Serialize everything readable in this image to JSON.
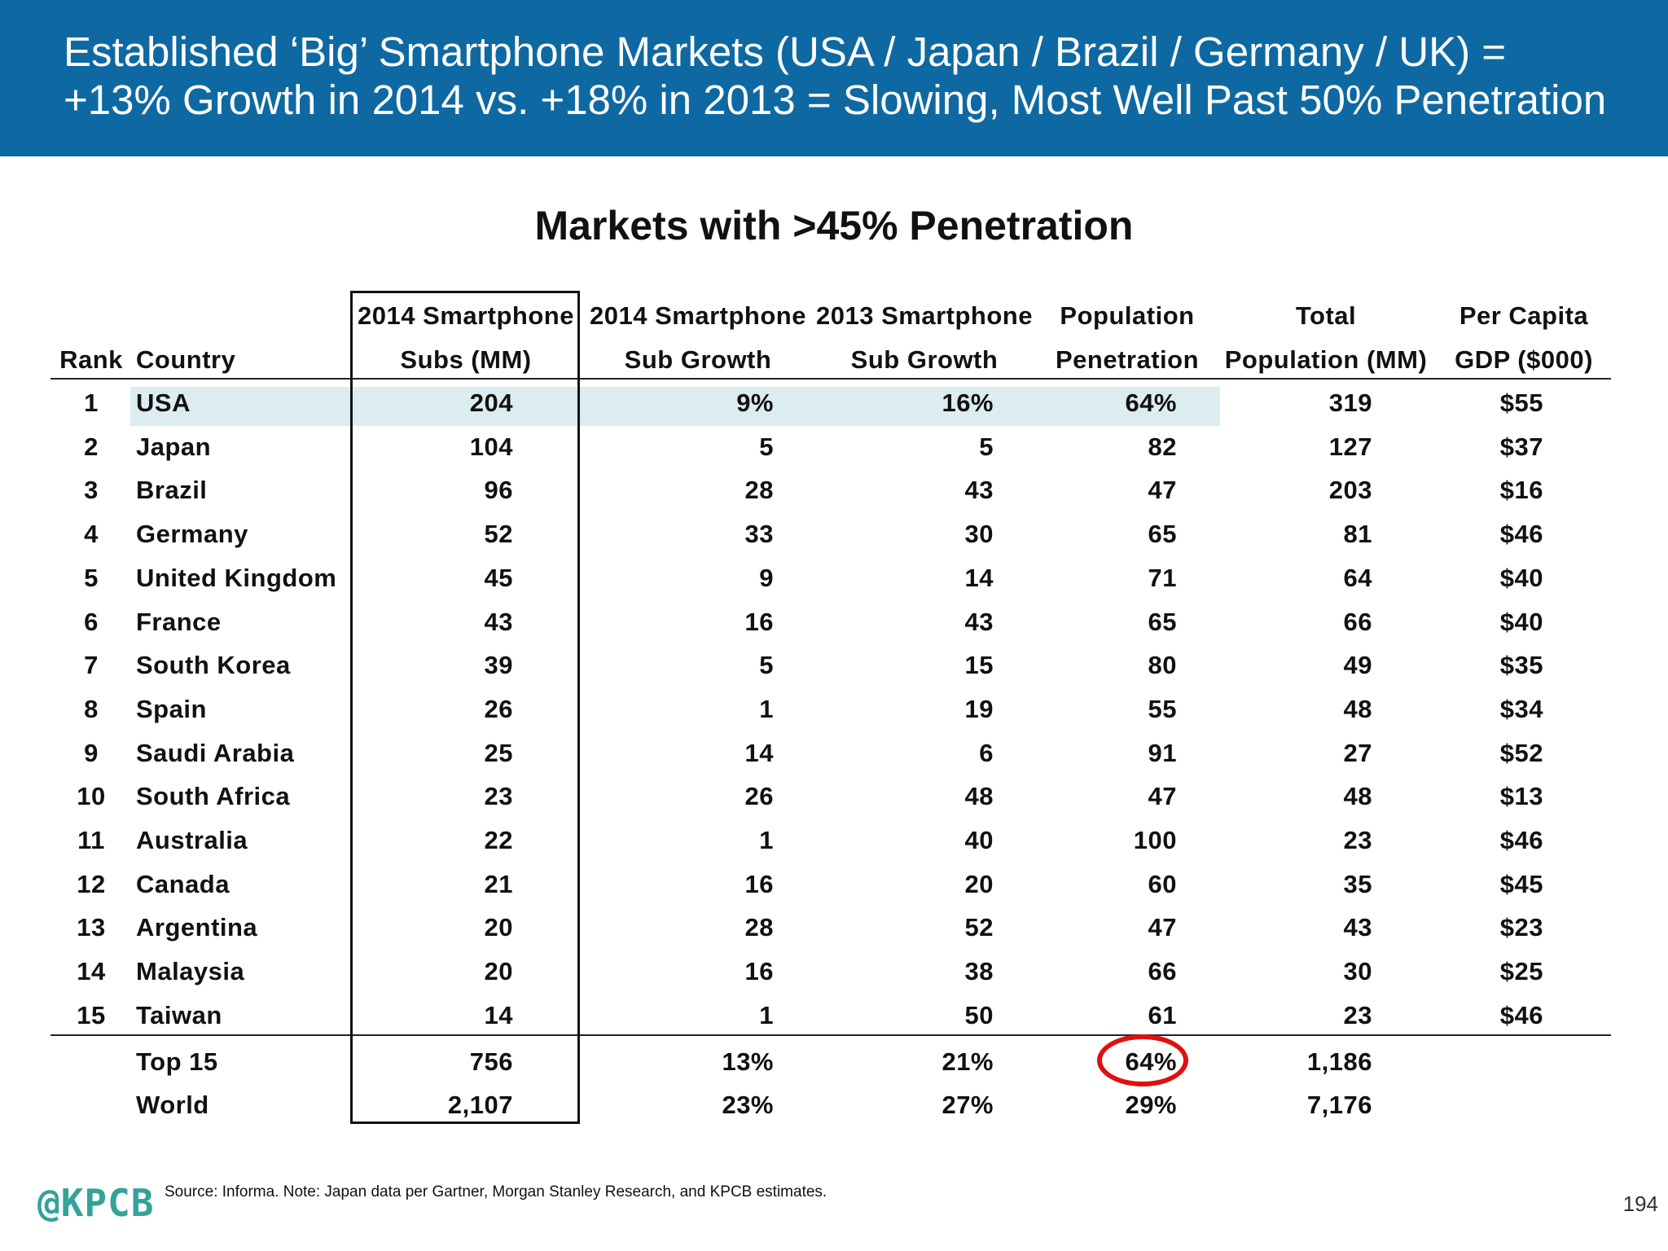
{
  "header": {
    "title_line1": "Established ‘Big’ Smartphone Markets (USA / Japan / Brazil / Germany / UK) =",
    "title_line2": "+13% Growth in 2014 vs. +18% in 2013 = Slowing, Most Well Past 50% Penetration"
  },
  "subtitle": "Markets with >45% Penetration",
  "columns": [
    {
      "line1": "",
      "line2": "Rank"
    },
    {
      "line1": "",
      "line2": "Country"
    },
    {
      "line1": "2014 Smartphone",
      "line2": "Subs (MM)"
    },
    {
      "line1": "2014 Smartphone",
      "line2": "Sub Growth"
    },
    {
      "line1": "2013 Smartphone",
      "line2": "Sub Growth"
    },
    {
      "line1": "Population",
      "line2": "Penetration"
    },
    {
      "line1": "Total",
      "line2": "Population (MM)"
    },
    {
      "line1": "Per Capita",
      "line2": "GDP ($000)"
    }
  ],
  "rows": [
    [
      "1",
      "USA",
      "204",
      "9%",
      "16%",
      "64%",
      "319",
      "$55"
    ],
    [
      "2",
      "Japan",
      "104",
      "5",
      "5",
      "82",
      "127",
      "$37"
    ],
    [
      "3",
      "Brazil",
      "96",
      "28",
      "43",
      "47",
      "203",
      "$16"
    ],
    [
      "4",
      "Germany",
      "52",
      "33",
      "30",
      "65",
      "81",
      "$46"
    ],
    [
      "5",
      "United Kingdom",
      "45",
      "9",
      "14",
      "71",
      "64",
      "$40"
    ],
    [
      "6",
      "France",
      "43",
      "16",
      "43",
      "65",
      "66",
      "$40"
    ],
    [
      "7",
      "South Korea",
      "39",
      "5",
      "15",
      "80",
      "49",
      "$35"
    ],
    [
      "8",
      "Spain",
      "26",
      "1",
      "19",
      "55",
      "48",
      "$34"
    ],
    [
      "9",
      "Saudi Arabia",
      "25",
      "14",
      "6",
      "91",
      "27",
      "$52"
    ],
    [
      "10",
      "South Africa",
      "23",
      "26",
      "48",
      "47",
      "48",
      "$13"
    ],
    [
      "11",
      "Australia",
      "22",
      "1",
      "40",
      "100",
      "23",
      "$46"
    ],
    [
      "12",
      "Canada",
      "21",
      "16",
      "20",
      "60",
      "35",
      "$45"
    ],
    [
      "13",
      "Argentina",
      "20",
      "28",
      "52",
      "47",
      "43",
      "$23"
    ],
    [
      "14",
      "Malaysia",
      "20",
      "16",
      "38",
      "66",
      "30",
      "$25"
    ],
    [
      "15",
      "Taiwan",
      "14",
      "1",
      "50",
      "61",
      "23",
      "$46"
    ]
  ],
  "totals": [
    [
      "",
      "Top 15",
      "756",
      "13%",
      "21%",
      "64%",
      "1,186",
      ""
    ],
    [
      "",
      "World",
      "2,107",
      "23%",
      "27%",
      "29%",
      "7,176",
      ""
    ]
  ],
  "highlight_color": "#dcedf1",
  "circle_color": "#e01010",
  "footer": {
    "logo": "@KPCB",
    "source": "Source: Informa. Note: Japan data per Gartner, Morgan Stanley Research, and KPCB estimates.",
    "page_number": "194"
  }
}
